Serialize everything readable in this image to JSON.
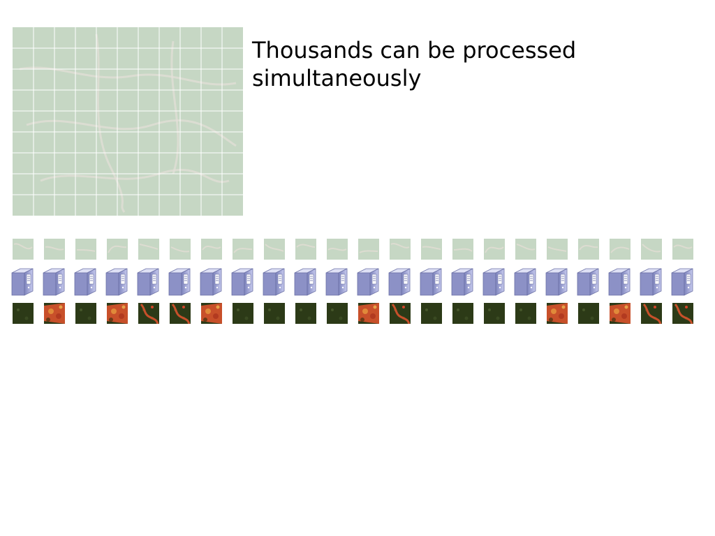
{
  "caption": "Thousands can be processed simultaneously",
  "colors": {
    "land_tint": "#c6d7c4",
    "grid_line": "#ffffff",
    "server_body": "#9a9fd0",
    "forest": "#2c3a17",
    "deforested": "#c8502a"
  },
  "icons": {
    "large_image": "satellite-image-icon",
    "tile": "image-tile-icon",
    "server": "server-icon",
    "result": "classified-tile-icon"
  },
  "grid": {
    "rows": 9,
    "cols": 11
  },
  "column_count": 22,
  "results": [
    "forest",
    "mixed",
    "forest",
    "mixed",
    "partial",
    "partial",
    "mixed",
    "forest",
    "forest",
    "forest",
    "forest",
    "mixed",
    "partial",
    "forest",
    "forest",
    "forest",
    "forest",
    "mixed",
    "forest",
    "mixed",
    "partial",
    "partial"
  ]
}
